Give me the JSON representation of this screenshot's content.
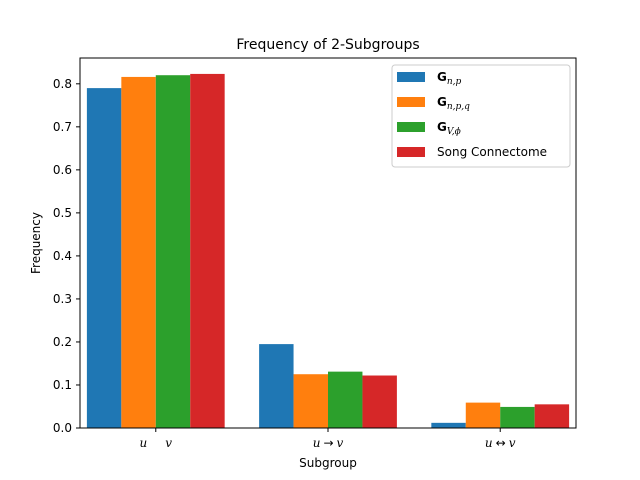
{
  "chart_data": {
    "type": "bar",
    "title": "Frequency of 2-Subgroups",
    "xlabel": "Subgroup",
    "ylabel": "Frequency",
    "ylim": [
      0,
      0.86
    ],
    "yticks": [
      "0.0",
      "0.1",
      "0.2",
      "0.3",
      "0.4",
      "0.5",
      "0.6",
      "0.7",
      "0.8"
    ],
    "categories": [
      {
        "a": "u",
        "op": "",
        "b": "v"
      },
      {
        "a": "u",
        "op": "→",
        "b": "v"
      },
      {
        "a": "u",
        "op": "↔",
        "b": "v"
      }
    ],
    "legend_position": "top-right",
    "grid": false,
    "series": [
      {
        "name": {
          "base": "G",
          "sub": "n,p"
        },
        "color": "#1f77b4",
        "values": [
          0.79,
          0.195,
          0.012
        ]
      },
      {
        "name": {
          "base": "G",
          "sub": "n,p,q"
        },
        "color": "#ff7f0e",
        "values": [
          0.816,
          0.125,
          0.059
        ]
      },
      {
        "name": {
          "base": "G",
          "sub": "V,ϕ"
        },
        "color": "#2ca02c",
        "values": [
          0.82,
          0.131,
          0.049
        ]
      },
      {
        "name": {
          "base": "",
          "sub": "",
          "text": "Song Connectome"
        },
        "color": "#d62728",
        "values": [
          0.823,
          0.122,
          0.055
        ]
      }
    ]
  }
}
